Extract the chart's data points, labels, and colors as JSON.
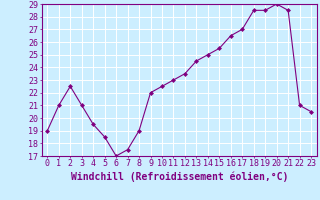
{
  "x": [
    0,
    1,
    2,
    3,
    4,
    5,
    6,
    7,
    8,
    9,
    10,
    11,
    12,
    13,
    14,
    15,
    16,
    17,
    18,
    19,
    20,
    21,
    22,
    23
  ],
  "y": [
    19,
    21,
    22.5,
    21,
    19.5,
    18.5,
    17,
    17.5,
    19,
    22,
    22.5,
    23,
    23.5,
    24.5,
    25,
    25.5,
    26.5,
    27,
    28.5,
    28.5,
    29,
    28.5,
    21,
    20.5
  ],
  "ylim": [
    17,
    29
  ],
  "yticks": [
    17,
    18,
    19,
    20,
    21,
    22,
    23,
    24,
    25,
    26,
    27,
    28,
    29
  ],
  "xticks": [
    0,
    1,
    2,
    3,
    4,
    5,
    6,
    7,
    8,
    9,
    10,
    11,
    12,
    13,
    14,
    15,
    16,
    17,
    18,
    19,
    20,
    21,
    22,
    23
  ],
  "xlabel": "Windchill (Refroidissement éolien,°C)",
  "line_color": "#800080",
  "marker": "D",
  "marker_size": 2,
  "background_color": "#cceeff",
  "grid_color": "#aaddcc",
  "tick_fontsize": 6,
  "xlabel_fontsize": 7
}
